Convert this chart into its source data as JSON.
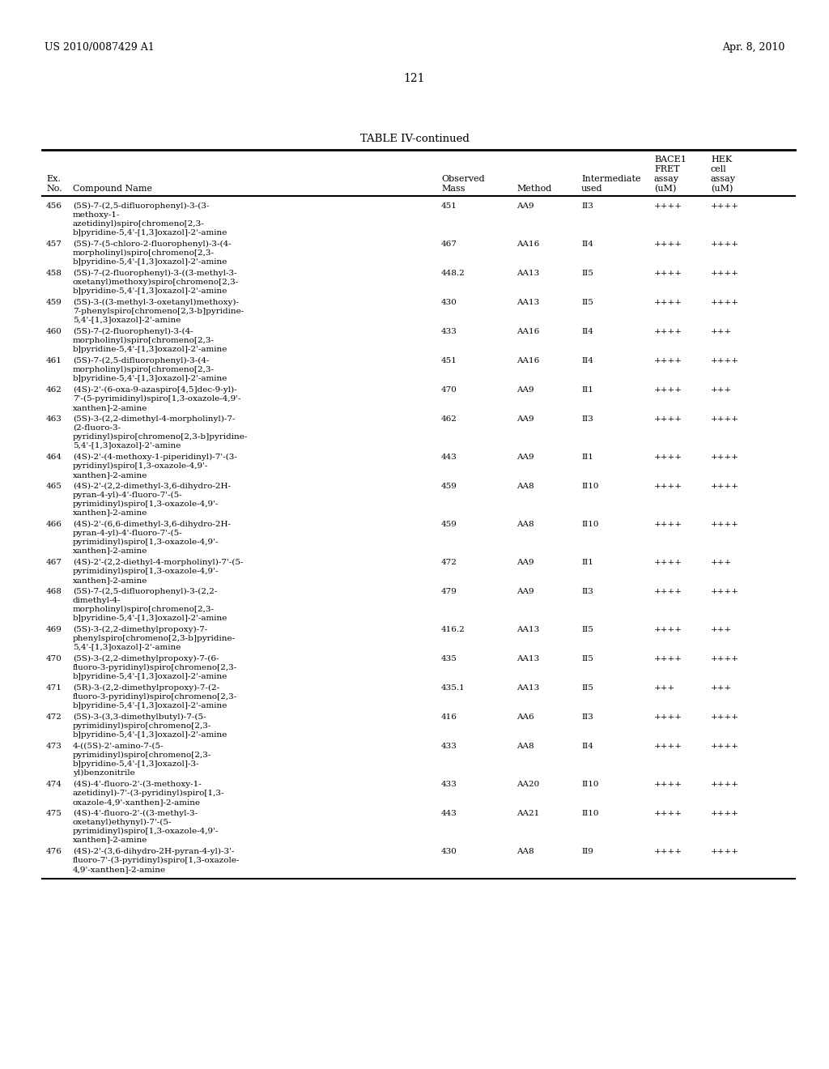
{
  "header_left": "US 2010/0087429 A1",
  "header_right": "Apr. 8, 2010",
  "page_number": "121",
  "table_title": "TABLE IV-continued",
  "rows": [
    [
      "456",
      "(5S)-7-(2,5-difluorophenyl)-3-(3-\nmethoxy-1-\nazetidinyl)spiro[chromeno[2,3-\nb]pyridine-5,4'-[1,3]oxazol]-2'-amine",
      "451",
      "AA9",
      "II3",
      "++++",
      "++++"
    ],
    [
      "457",
      "(5S)-7-(5-chloro-2-fluorophenyl)-3-(4-\nmorpholinyl)spiro[chromeno[2,3-\nb]pyridine-5,4'-[1,3]oxazol]-2'-amine",
      "467",
      "AA16",
      "II4",
      "++++",
      "++++"
    ],
    [
      "458",
      "(5S)-7-(2-fluorophenyl)-3-((3-methyl-3-\noxetanyl)methoxy)spiro[chromeno[2,3-\nb]pyridine-5,4'-[1,3]oxazol]-2'-amine",
      "448.2",
      "AA13",
      "II5",
      "++++",
      "++++"
    ],
    [
      "459",
      "(5S)-3-((3-methyl-3-oxetanyl)methoxy)-\n7-phenylspiro[chromeno[2,3-b]pyridine-\n5,4'-[1,3]oxazol]-2'-amine",
      "430",
      "AA13",
      "II5",
      "++++",
      "++++"
    ],
    [
      "460",
      "(5S)-7-(2-fluorophenyl)-3-(4-\nmorpholinyl)spiro[chromeno[2,3-\nb]pyridine-5,4'-[1,3]oxazol]-2'-amine",
      "433",
      "AA16",
      "II4",
      "++++",
      "+++"
    ],
    [
      "461",
      "(5S)-7-(2,5-difluorophenyl)-3-(4-\nmorpholinyl)spiro[chromeno[2,3-\nb]pyridine-5,4'-[1,3]oxazol]-2'-amine",
      "451",
      "AA16",
      "II4",
      "++++",
      "++++"
    ],
    [
      "462",
      "(4S)-2'-(6-oxa-9-azaspiro[4,5]dec-9-yl)-\n7'-(5-pyrimidinyl)spiro[1,3-oxazole-4,9'-\nxanthen]-2-amine",
      "470",
      "AA9",
      "II1",
      "++++",
      "+++"
    ],
    [
      "463",
      "(5S)-3-(2,2-dimethyl-4-morpholinyl)-7-\n(2-fluoro-3-\npyridinyl)spiro[chromeno[2,3-b]pyridine-\n5,4'-[1,3]oxazol]-2'-amine",
      "462",
      "AA9",
      "II3",
      "++++",
      "++++"
    ],
    [
      "464",
      "(4S)-2'-(4-methoxy-1-piperidinyl)-7'-(3-\npyridinyl)spiro[1,3-oxazole-4,9'-\nxanthen]-2-amine",
      "443",
      "AA9",
      "II1",
      "++++",
      "++++"
    ],
    [
      "465",
      "(4S)-2'-(2,2-dimethyl-3,6-dihydro-2H-\npyran-4-yl)-4'-fluoro-7'-(5-\npyrimidinyl)spiro[1,3-oxazole-4,9'-\nxanthen]-2-amine",
      "459",
      "AA8",
      "II10",
      "++++",
      "++++"
    ],
    [
      "466",
      "(4S)-2'-(6,6-dimethyl-3,6-dihydro-2H-\npyran-4-yl)-4'-fluoro-7'-(5-\npyrimidinyl)spiro[1,3-oxazole-4,9'-\nxanthen]-2-amine",
      "459",
      "AA8",
      "II10",
      "++++",
      "++++"
    ],
    [
      "467",
      "(4S)-2'-(2,2-diethyl-4-morpholinyl)-7'-(5-\npyrimidinyl)spiro[1,3-oxazole-4,9'-\nxanthen]-2-amine",
      "472",
      "AA9",
      "II1",
      "++++",
      "+++"
    ],
    [
      "468",
      "(5S)-7-(2,5-difluorophenyl)-3-(2,2-\ndimethyl-4-\nmorpholinyl)spiro[chromeno[2,3-\nb]pyridine-5,4'-[1,3]oxazol]-2'-amine",
      "479",
      "AA9",
      "II3",
      "++++",
      "++++"
    ],
    [
      "469",
      "(5S)-3-(2,2-dimethylpropoxy)-7-\nphenylspiro[chromeno[2,3-b]pyridine-\n5,4'-[1,3]oxazol]-2'-amine",
      "416.2",
      "AA13",
      "II5",
      "++++",
      "+++"
    ],
    [
      "470",
      "(5S)-3-(2,2-dimethylpropoxy)-7-(6-\nfluoro-3-pyridinyl)spiro[chromeno[2,3-\nb]pyridine-5,4'-[1,3]oxazol]-2'-amine",
      "435",
      "AA13",
      "II5",
      "++++",
      "++++"
    ],
    [
      "471",
      "(5R)-3-(2,2-dimethylpropoxy)-7-(2-\nfluoro-3-pyridinyl)spiro[chromeno[2,3-\nb]pyridine-5,4'-[1,3]oxazol]-2'-amine",
      "435.1",
      "AA13",
      "II5",
      "+++",
      "+++"
    ],
    [
      "472",
      "(5S)-3-(3,3-dimethylbutyl)-7-(5-\npyrimidinyl)spiro[chromeno[2,3-\nb]pyridine-5,4'-[1,3]oxazol]-2'-amine",
      "416",
      "AA6",
      "II3",
      "++++",
      "++++"
    ],
    [
      "473",
      "4-((5S)-2'-amino-7-(5-\npyrimidinyl)spiro[chromeno[2,3-\nb]pyridine-5,4'-[1,3]oxazol]-3-\nyl)benzonitrile",
      "433",
      "AA8",
      "II4",
      "++++",
      "++++"
    ],
    [
      "474",
      "(4S)-4'-fluoro-2'-(3-methoxy-1-\nazetidinyl)-7'-(3-pyridinyl)spiro[1,3-\noxazole-4,9'-xanthen]-2-amine",
      "433",
      "AA20",
      "II10",
      "++++",
      "++++"
    ],
    [
      "475",
      "(4S)-4'-fluoro-2'-((3-methyl-3-\noxetanyl)ethynyl)-7'-(5-\npyrimidinyl)spiro[1,3-oxazole-4,9'-\nxanthen]-2-amine",
      "443",
      "AA21",
      "II10",
      "++++",
      "++++"
    ],
    [
      "476",
      "(4S)-2'-(3,6-dihydro-2H-pyran-4-yl)-3'-\nfluoro-7'-(3-pyridinyl)spiro[1,3-oxazole-\n4,9'-xanthen]-2-amine",
      "430",
      "AA8",
      "II9",
      "++++",
      "++++"
    ]
  ],
  "fig_width": 10.24,
  "fig_height": 13.2,
  "dpi": 100
}
